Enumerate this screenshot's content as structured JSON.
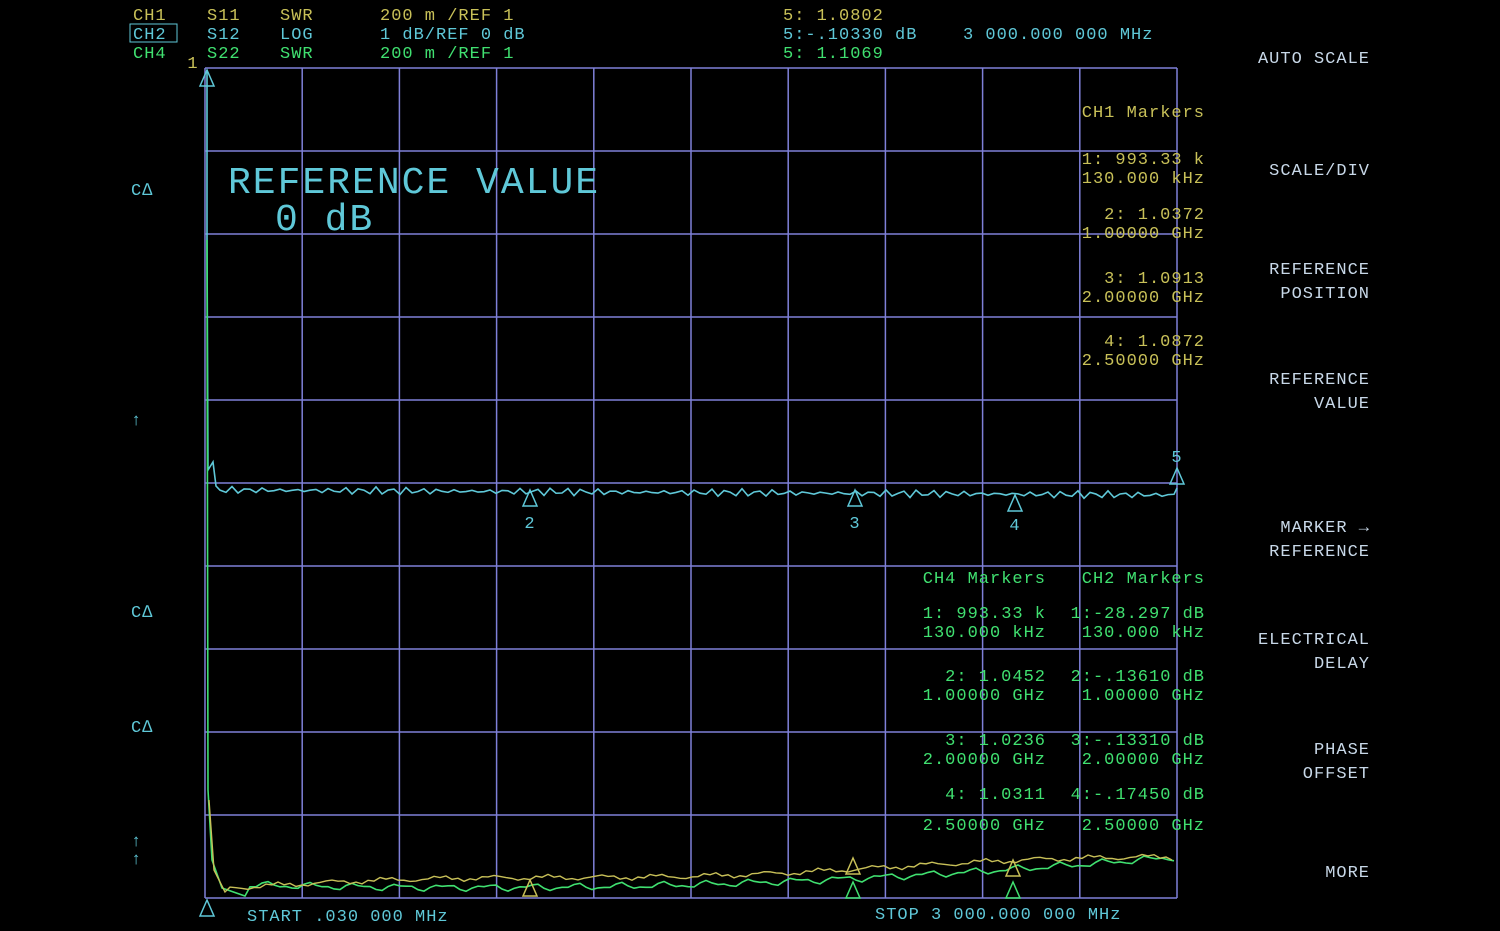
{
  "header": {
    "channels": [
      [
        "CH1",
        "S11",
        "SWR",
        "200 m /REF 1"
      ],
      [
        "CH2",
        "S12",
        "LOG",
        "1 dB/REF 0 dB"
      ],
      [
        "CH4",
        "S22",
        "SWR",
        "200 m /REF 1"
      ]
    ],
    "readouts": [
      "5: 1.0802",
      "5:-.10330 dB",
      "5: 1.1069"
    ],
    "frequency": "3 000.000 000 MHz"
  },
  "overlay": {
    "title": "REFERENCE VALUE",
    "value": "0 dB"
  },
  "left_labels": [
    "C∆",
    "↑",
    "C∆",
    "C∆",
    "↑",
    "↑"
  ],
  "ch1_markers": {
    "title": "CH1 Markers",
    "entries": [
      [
        "1: 993.33 k",
        "130.000 kHz"
      ],
      [
        "2: 1.0372",
        "1.00000 GHz"
      ],
      [
        "3: 1.0913",
        "2.00000 GHz"
      ],
      [
        "4: 1.0872",
        "2.50000 GHz"
      ]
    ]
  },
  "ch4_markers": {
    "title": "CH4 Markers",
    "entries": [
      [
        "1: 993.33 k",
        "130.000 kHz"
      ],
      [
        "2: 1.0452",
        "1.00000 GHz"
      ],
      [
        "3: 1.0236",
        "2.00000 GHz"
      ],
      [
        "4: 1.0311",
        "2.50000 GHz"
      ]
    ]
  },
  "ch2_markers": {
    "title": "CH2 Markers",
    "entries": [
      [
        "1:-28.297 dB",
        "130.000 kHz"
      ],
      [
        "2:-.13610 dB",
        "1.00000 GHz"
      ],
      [
        "3:-.13310 dB",
        "2.00000 GHz"
      ],
      [
        "4:-.17450 dB",
        "2.50000 GHz"
      ]
    ]
  },
  "trace_markers": [
    "1",
    "2",
    "3",
    "4",
    "5"
  ],
  "softkeys": [
    [
      "AUTO SCALE"
    ],
    [
      "SCALE/DIV"
    ],
    [
      "REFERENCE",
      "POSITION"
    ],
    [
      "REFERENCE",
      "VALUE"
    ],
    [
      "MARKER →",
      "REFERENCE"
    ],
    [
      "ELECTRICAL",
      "DELAY"
    ],
    [
      "PHASE",
      "OFFSET"
    ],
    [
      "MORE"
    ]
  ],
  "footer": {
    "start": "START .030 000 MHz",
    "stop": "STOP 3 000.000 000 MHz"
  }
}
